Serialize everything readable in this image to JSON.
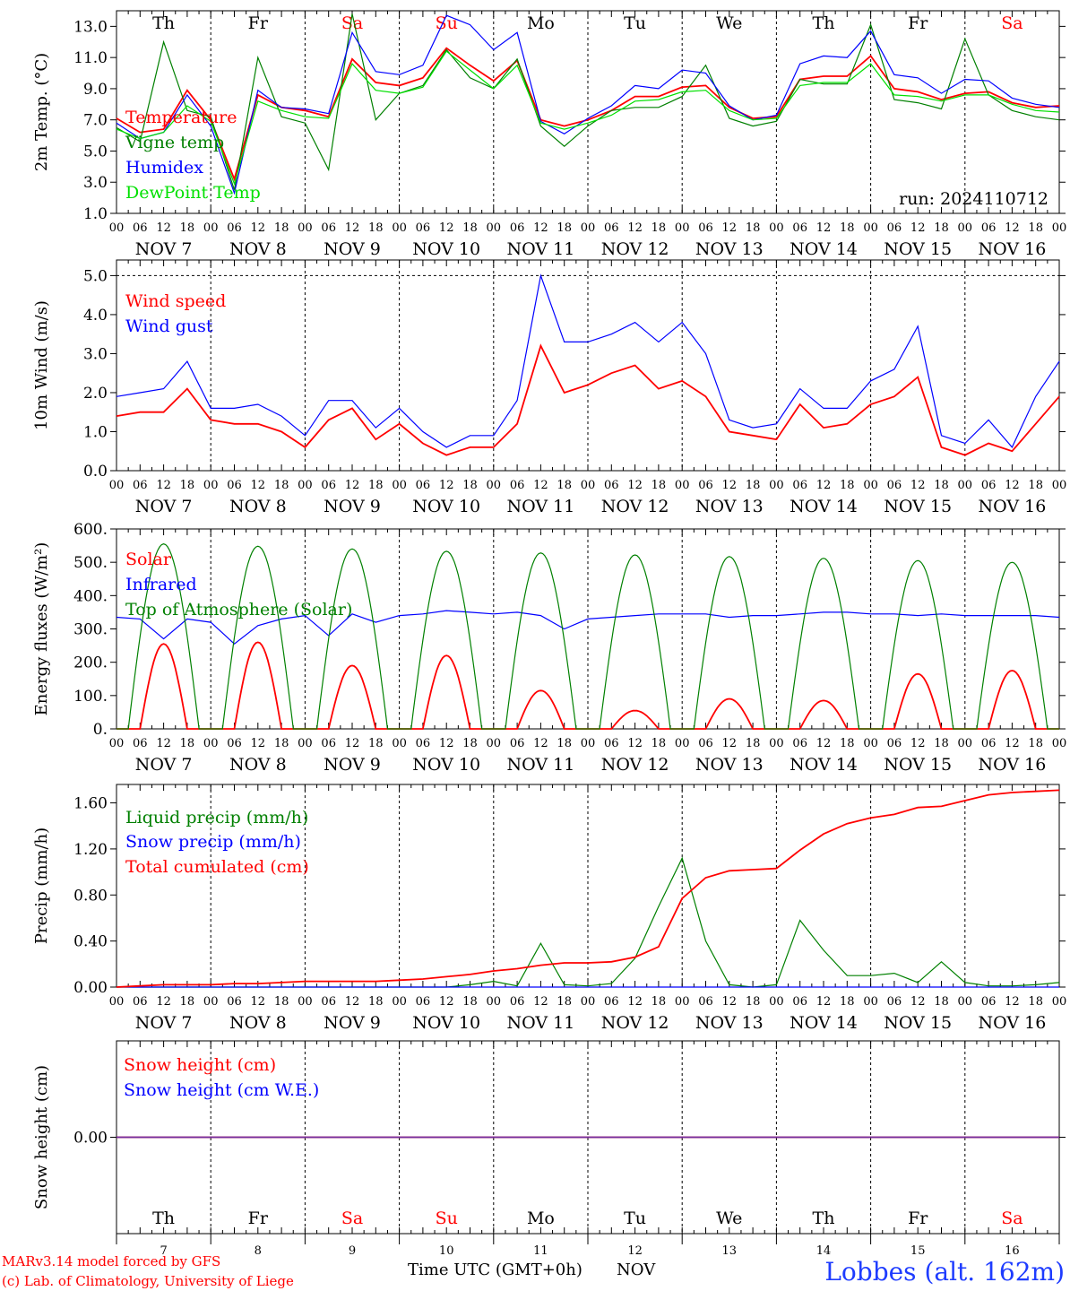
{
  "colors": {
    "red": "#ff0000",
    "green": "#008000",
    "blue": "#0000ff",
    "lightgreen": "#00e000",
    "purple": "#7030a0"
  },
  "footer": {
    "model": "MARv3.14 model forced by GFS",
    "copyright": "(c) Lab. of Climatology, University of Liege",
    "time_label": "Time UTC (GMT+0h)",
    "month_label": "NOV",
    "station": "Lobbes (alt. 162m)"
  },
  "days": {
    "weekday_labels": [
      "Th",
      "Fr",
      "Sa",
      "Su",
      "Mo",
      "Tu",
      "We",
      "Th",
      "Fr",
      "Sa"
    ],
    "weekend": [
      false,
      false,
      true,
      true,
      false,
      false,
      false,
      false,
      false,
      true
    ],
    "date_labels": [
      "NOV  7",
      "NOV  8",
      "NOV  9",
      "NOV 10",
      "NOV 11",
      "NOV 12",
      "NOV 13",
      "NOV 14",
      "NOV 15",
      "NOV 16"
    ],
    "day_numbers": [
      "7",
      "8",
      "9",
      "10",
      "11",
      "12",
      "13",
      "14",
      "15",
      "16"
    ],
    "hour_labels": [
      "00",
      "06",
      "12",
      "18"
    ],
    "final_hour_label": "00"
  },
  "chart_data": [
    {
      "type": "line",
      "title": "",
      "xlabel": "",
      "ylabel": "2m Temp. (°C)",
      "ylim": [
        1,
        14
      ],
      "yticks": [
        "1.0",
        "3.0",
        "5.0",
        "7.0",
        "9.0",
        "11.0",
        "13.0"
      ],
      "ytick_values": [
        1,
        3,
        5,
        7,
        9,
        11,
        13
      ],
      "annotation": "run: 2024110712",
      "x_hours": [
        0,
        6,
        12,
        18,
        24,
        30,
        36,
        42,
        48,
        54,
        60,
        66,
        72,
        78,
        84,
        90,
        96,
        102,
        108,
        114,
        120,
        126,
        132,
        138,
        144,
        150,
        156,
        162,
        168,
        174,
        180,
        186,
        192,
        198,
        204,
        210,
        216,
        222,
        228,
        234,
        240
      ],
      "series": [
        {
          "name": "Temperature",
          "color": "red",
          "values": [
            7.1,
            6.2,
            6.4,
            8.9,
            7.0,
            3.2,
            8.6,
            7.8,
            7.6,
            7.2,
            10.9,
            9.4,
            9.2,
            9.7,
            11.6,
            10.5,
            9.5,
            10.8,
            7.0,
            6.6,
            7.0,
            7.6,
            8.5,
            8.5,
            9.1,
            9.2,
            7.8,
            7.1,
            7.2,
            9.6,
            9.8,
            9.8,
            11.1,
            9.0,
            8.8,
            8.3,
            8.7,
            8.8,
            8.1,
            7.8,
            7.9
          ]
        },
        {
          "name": "Vigne temp",
          "color": "green",
          "values": [
            6.5,
            5.6,
            12.0,
            7.6,
            7.2,
            2.5,
            11.0,
            7.2,
            6.8,
            3.8,
            13.8,
            7.0,
            8.7,
            9.2,
            11.5,
            9.7,
            9.0,
            10.9,
            6.6,
            5.3,
            6.6,
            7.6,
            7.8,
            7.8,
            8.5,
            10.5,
            7.1,
            6.6,
            6.9,
            9.6,
            9.3,
            9.3,
            13.1,
            8.3,
            8.1,
            7.7,
            12.2,
            8.6,
            7.6,
            7.2,
            7.0
          ]
        },
        {
          "name": "Humidex",
          "color": "blue",
          "values": [
            6.8,
            5.8,
            6.2,
            8.6,
            6.6,
            2.3,
            8.9,
            7.8,
            7.7,
            7.4,
            12.6,
            10.1,
            9.9,
            10.5,
            13.7,
            13.1,
            11.5,
            12.6,
            6.9,
            6.1,
            7.1,
            7.9,
            9.2,
            9.0,
            10.2,
            10.0,
            7.9,
            7.0,
            7.3,
            10.6,
            11.1,
            11.0,
            12.7,
            9.9,
            9.7,
            8.7,
            9.6,
            9.5,
            8.4,
            8.0,
            7.8
          ]
        },
        {
          "name": "DewPoint Temp",
          "color": "lightgreen",
          "values": [
            6.4,
            5.8,
            6.2,
            7.9,
            6.9,
            2.9,
            8.2,
            7.6,
            7.2,
            7.1,
            10.6,
            8.9,
            8.7,
            9.1,
            11.4,
            10.2,
            9.0,
            10.5,
            6.8,
            6.4,
            6.8,
            7.3,
            8.2,
            8.3,
            8.8,
            8.9,
            7.6,
            7.0,
            7.1,
            9.2,
            9.4,
            9.4,
            10.6,
            8.6,
            8.5,
            8.2,
            8.6,
            8.6,
            8.0,
            7.6,
            7.5
          ]
        }
      ]
    },
    {
      "type": "line",
      "title": "",
      "xlabel": "",
      "ylabel": "10m Wind (m/s)",
      "ylim": [
        0,
        5.4
      ],
      "yticks": [
        "0.0",
        "1.0",
        "2.0",
        "3.0",
        "4.0",
        "5.0"
      ],
      "ytick_values": [
        0,
        1,
        2,
        3,
        4,
        5
      ],
      "x_hours": [
        0,
        6,
        12,
        18,
        24,
        30,
        36,
        42,
        48,
        54,
        60,
        66,
        72,
        78,
        84,
        90,
        96,
        102,
        108,
        114,
        120,
        126,
        132,
        138,
        144,
        150,
        156,
        162,
        168,
        174,
        180,
        186,
        192,
        198,
        204,
        210,
        216,
        222,
        228,
        234,
        240
      ],
      "series": [
        {
          "name": "Wind speed",
          "color": "red",
          "values": [
            1.4,
            1.5,
            1.5,
            2.1,
            1.3,
            1.2,
            1.2,
            1.0,
            0.6,
            1.3,
            1.6,
            0.8,
            1.2,
            0.7,
            0.4,
            0.6,
            0.6,
            1.2,
            3.2,
            2.0,
            2.2,
            2.5,
            2.7,
            2.1,
            2.3,
            1.9,
            1.0,
            0.9,
            0.8,
            1.7,
            1.1,
            1.2,
            1.7,
            1.9,
            2.4,
            0.6,
            0.4,
            0.7,
            0.5,
            1.2,
            1.9
          ]
        },
        {
          "name": "Wind gust",
          "color": "blue",
          "values": [
            1.9,
            2.0,
            2.1,
            2.8,
            1.6,
            1.6,
            1.7,
            1.4,
            0.9,
            1.8,
            1.8,
            1.1,
            1.6,
            1.0,
            0.6,
            0.9,
            0.9,
            1.8,
            5.0,
            3.3,
            3.3,
            3.5,
            3.8,
            3.3,
            3.8,
            3.0,
            1.3,
            1.1,
            1.2,
            2.1,
            1.6,
            1.6,
            2.3,
            2.6,
            3.7,
            0.9,
            0.7,
            1.3,
            0.6,
            1.9,
            2.8
          ]
        }
      ]
    },
    {
      "type": "line",
      "title": "",
      "xlabel": "",
      "ylabel": "Energy fluxes (W/m²)",
      "ylim": [
        0,
        600
      ],
      "yticks": [
        "0.",
        "100.",
        "200.",
        "300.",
        "400.",
        "500.",
        "600."
      ],
      "ytick_values": [
        0,
        100,
        200,
        300,
        400,
        500,
        600
      ],
      "daily_peak_hour": 12,
      "series": [
        {
          "name": "Solar",
          "color": "red",
          "daily_peaks": [
            255,
            260,
            190,
            220,
            115,
            55,
            90,
            85,
            165,
            175
          ]
        },
        {
          "name": "Infrared",
          "color": "blue",
          "x_hours": [
            0,
            6,
            12,
            18,
            24,
            30,
            36,
            42,
            48,
            54,
            60,
            66,
            72,
            78,
            84,
            90,
            96,
            102,
            108,
            114,
            120,
            126,
            132,
            138,
            144,
            150,
            156,
            162,
            168,
            174,
            180,
            186,
            192,
            198,
            204,
            210,
            216,
            222,
            228,
            234,
            240
          ],
          "values": [
            335,
            330,
            270,
            330,
            320,
            255,
            310,
            330,
            340,
            280,
            345,
            320,
            340,
            345,
            355,
            350,
            345,
            350,
            340,
            300,
            330,
            335,
            340,
            345,
            345,
            345,
            335,
            340,
            340,
            345,
            350,
            350,
            345,
            345,
            340,
            345,
            340,
            340,
            340,
            340,
            335
          ]
        },
        {
          "name": "Top of Atmosphere (Solar)",
          "color": "green",
          "daily_peaks": [
            555,
            548,
            540,
            533,
            528,
            522,
            517,
            512,
            505,
            500
          ]
        }
      ]
    },
    {
      "type": "line",
      "title": "",
      "xlabel": "",
      "ylabel": "Precip (mm/h)",
      "ylim": [
        0,
        1.76
      ],
      "yticks": [
        "0.00",
        "0.40",
        "0.80",
        "1.20",
        "1.60"
      ],
      "ytick_values": [
        0,
        0.4,
        0.8,
        1.2,
        1.6
      ],
      "x_hours": [
        0,
        6,
        12,
        18,
        24,
        30,
        36,
        42,
        48,
        54,
        60,
        66,
        72,
        78,
        84,
        90,
        96,
        102,
        108,
        114,
        120,
        126,
        132,
        138,
        144,
        150,
        156,
        162,
        168,
        174,
        180,
        186,
        192,
        198,
        204,
        210,
        216,
        222,
        228,
        234,
        240
      ],
      "series": [
        {
          "name": "Liquid precip (mm/h)",
          "color": "green",
          "values": [
            0,
            0,
            0,
            0,
            0,
            0,
            0,
            0,
            0,
            0,
            0,
            0,
            0,
            0,
            0,
            0.02,
            0.05,
            0.01,
            0.38,
            0.02,
            0.01,
            0.03,
            0.25,
            0.7,
            1.12,
            0.4,
            0.02,
            0,
            0.02,
            0.58,
            0.32,
            0.1,
            0.1,
            0.12,
            0.04,
            0.22,
            0.04,
            0.01,
            0.01,
            0.02,
            0.04
          ]
        },
        {
          "name": "Snow precip (mm/h)",
          "color": "blue",
          "values": [
            0,
            0,
            0,
            0,
            0,
            0,
            0,
            0,
            0,
            0,
            0,
            0,
            0,
            0,
            0,
            0,
            0,
            0,
            0,
            0,
            0,
            0,
            0,
            0,
            0,
            0,
            0,
            0,
            0,
            0,
            0,
            0,
            0,
            0,
            0,
            0,
            0,
            0,
            0,
            0,
            0
          ]
        },
        {
          "name": "Total cumulated (cm)",
          "color": "red",
          "values": [
            0,
            0.01,
            0.02,
            0.02,
            0.02,
            0.03,
            0.03,
            0.04,
            0.05,
            0.05,
            0.05,
            0.05,
            0.06,
            0.07,
            0.09,
            0.11,
            0.14,
            0.16,
            0.19,
            0.21,
            0.21,
            0.22,
            0.26,
            0.35,
            0.77,
            0.95,
            1.01,
            1.02,
            1.03,
            1.19,
            1.33,
            1.42,
            1.47,
            1.5,
            1.56,
            1.57,
            1.62,
            1.67,
            1.69,
            1.7,
            1.71
          ]
        }
      ]
    },
    {
      "type": "line",
      "title": "",
      "xlabel": "Time UTC (GMT+0h)",
      "ylabel": "Snow height (cm)",
      "ylim": [
        -1,
        1
      ],
      "yticks": [
        "0.00"
      ],
      "ytick_values": [
        0
      ],
      "series": [
        {
          "name": "Snow height (cm)",
          "color": "red",
          "values": [
            0,
            0
          ]
        },
        {
          "name": "Snow height (cm W.E.)",
          "color": "blue",
          "values": [
            0,
            0
          ]
        }
      ]
    }
  ]
}
